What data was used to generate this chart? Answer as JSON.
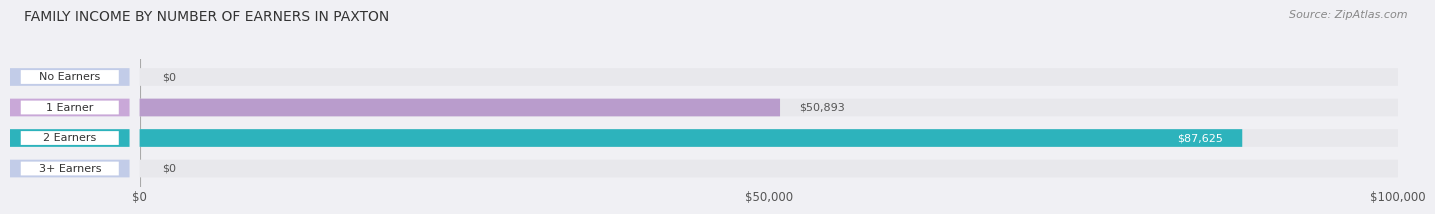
{
  "title": "FAMILY INCOME BY NUMBER OF EARNERS IN PAXTON",
  "source": "Source: ZipAtlas.com",
  "categories": [
    "No Earners",
    "1 Earner",
    "2 Earners",
    "3+ Earners"
  ],
  "values": [
    0,
    50893,
    87625,
    0
  ],
  "bar_colors": [
    "#aab8d8",
    "#b99ccc",
    "#2db3bc",
    "#aab8d8"
  ],
  "bar_bg_color": "#e8e8ec",
  "label_bg_colors": [
    "#c2cce8",
    "#c9a8d8",
    "#2db3bc",
    "#c2cce8"
  ],
  "label_text_colors": [
    "#333333",
    "#333333",
    "#ffffff",
    "#333333"
  ],
  "value_label_inside": [
    false,
    false,
    false,
    false
  ],
  "value_colors_outside": [
    "#555555",
    "#555555",
    "#ffffff",
    "#555555"
  ],
  "xlim": [
    0,
    100000
  ],
  "xticks": [
    0,
    50000,
    100000
  ],
  "xticklabels": [
    "$0",
    "$50,000",
    "$100,000"
  ],
  "title_fontsize": 10,
  "source_fontsize": 8,
  "tick_fontsize": 8.5,
  "bar_height": 0.58,
  "figsize": [
    14.06,
    2.33
  ]
}
